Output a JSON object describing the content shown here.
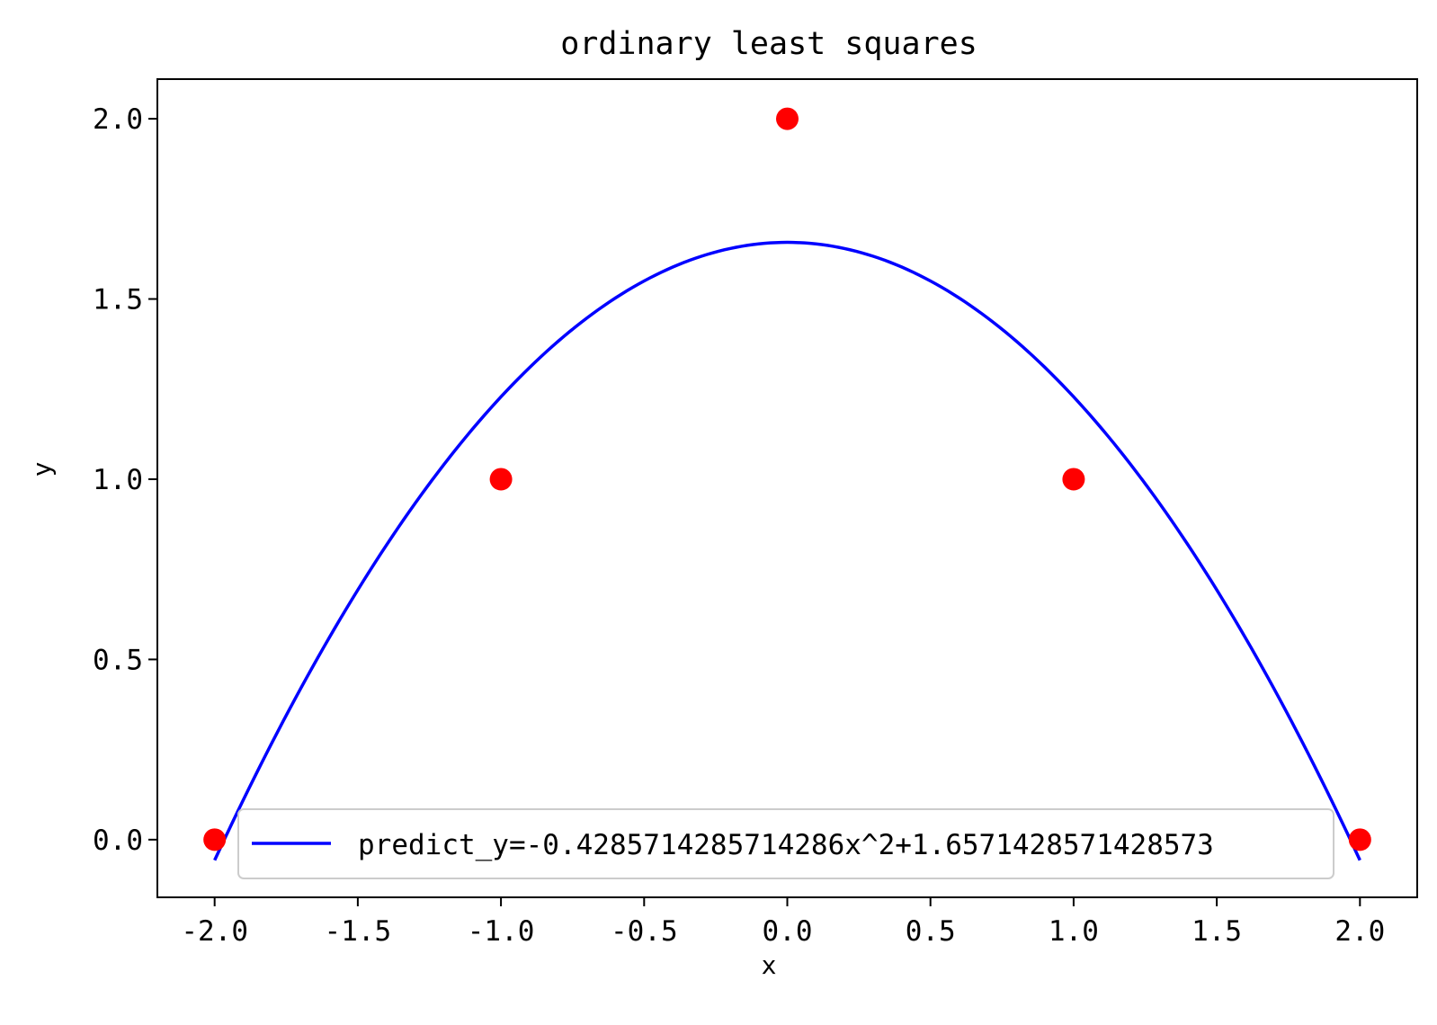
{
  "chart_data": {
    "type": "scatter",
    "title": "ordinary least squares",
    "xlabel": "x",
    "ylabel": "y",
    "xlim": [
      -2.2,
      2.2
    ],
    "ylim": [
      -0.16,
      2.11
    ],
    "xticks": [
      -2.0,
      -1.5,
      -1.0,
      -0.5,
      0.0,
      0.5,
      1.0,
      1.5,
      2.0
    ],
    "xtick_labels": [
      "-2.0",
      "-1.5",
      "-1.0",
      "-0.5",
      "0.0",
      "0.5",
      "1.0",
      "1.5",
      "2.0"
    ],
    "yticks": [
      0.0,
      0.5,
      1.0,
      1.5,
      2.0
    ],
    "ytick_labels": [
      "0.0",
      "0.5",
      "1.0",
      "1.5",
      "2.0"
    ],
    "grid": false,
    "legend_position": "lower center",
    "series": [
      {
        "kind": "scatter",
        "color": "#ff0000",
        "x": [
          -2,
          -1,
          0,
          1,
          2
        ],
        "y": [
          0,
          1,
          2,
          1,
          0
        ]
      },
      {
        "kind": "line",
        "name": "predict_y=-0.4285714285714286x^2+1.657142857142857​3",
        "color": "#0000ff",
        "function": {
          "a": -0.4285714285714286,
          "b": 0,
          "c": 1.6571428571428573
        },
        "x_range": [
          -2,
          2
        ]
      }
    ]
  }
}
